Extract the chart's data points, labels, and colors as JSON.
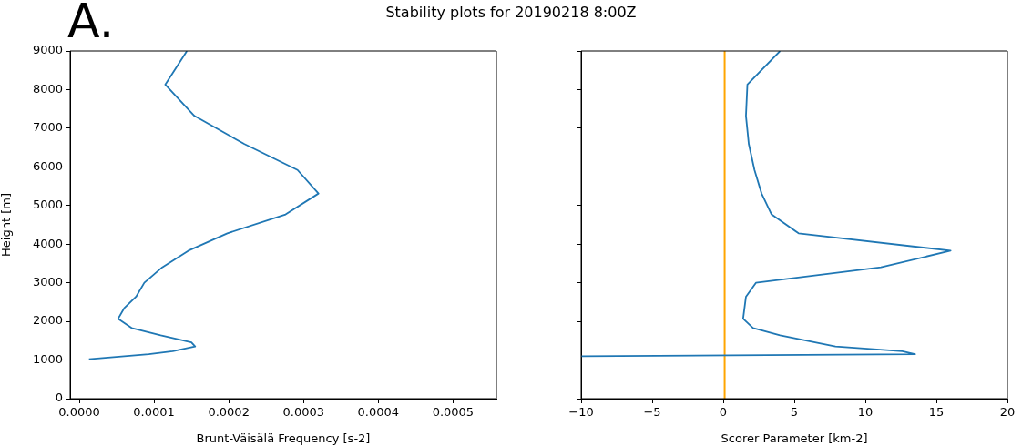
{
  "chart_data": [
    {
      "type": "line",
      "title": "Stability plots for 20190218 8:00Z",
      "annotations": [
        "A."
      ],
      "xlabel": "Brunt-Väisälä Frequency [s-2]",
      "ylabel": "Height [m]",
      "series": [
        {
          "color": "#1f77b4",
          "x": [
            0.000144,
            0.000115,
            0.000154,
            0.000221,
            0.000292,
            0.00032,
            0.000276,
            0.000198,
            0.000146,
            0.000111,
            8.7e-05,
            7.6e-05,
            6e-05,
            5.2e-05,
            7e-05,
            0.000109,
            0.00015,
            0.000155,
            0.000125,
            9.3e-05,
            1.3e-05
          ],
          "values": [
            9000,
            8130,
            7320,
            6590,
            5920,
            5310,
            4770,
            4280,
            3830,
            3400,
            3000,
            2640,
            2340,
            2070,
            1830,
            1640,
            1460,
            1350,
            1230,
            1150,
            1020
          ]
        }
      ],
      "xlim": [
        -1.22e-05,
        0.000558
      ],
      "xticks": [
        {
          "value": 0,
          "label": "0.0000"
        },
        {
          "value": 0.0001,
          "label": "0.0001"
        },
        {
          "value": 0.0002,
          "label": "0.0002"
        },
        {
          "value": 0.0003,
          "label": "0.0003"
        },
        {
          "value": 0.0004,
          "label": "0.0004"
        },
        {
          "value": 0.0005,
          "label": "0.0005"
        }
      ],
      "ylim": [
        0,
        9000
      ],
      "yticks": [
        0,
        1000,
        2000,
        3000,
        4000,
        5000,
        6000,
        7000,
        8000,
        9000
      ],
      "grid": false,
      "legend": false,
      "marker": "none",
      "line_style": "solid"
    },
    {
      "type": "line",
      "xlabel": "Scorer Parameter [km-2]",
      "series": [
        {
          "color": "#1f77b4",
          "x": [
            4.0,
            1.7,
            1.6,
            1.8,
            2.2,
            2.7,
            3.4,
            5.3,
            16.0,
            11.1,
            2.3,
            1.6,
            1.4,
            2.1,
            4.0,
            7.9,
            12.6,
            13.5,
            -10
          ],
          "values": [
            9000,
            8130,
            7320,
            6590,
            5920,
            5310,
            4770,
            4280,
            3830,
            3400,
            3000,
            2640,
            2070,
            1830,
            1640,
            1350,
            1230,
            1150,
            1100
          ]
        }
      ],
      "xlim": [
        -10,
        20
      ],
      "xticks": [
        {
          "value": -10,
          "label": "−10"
        },
        {
          "value": -5,
          "label": "−5"
        },
        0,
        5,
        10,
        15,
        20
      ],
      "ylim": [
        0,
        9000
      ],
      "yticks": [
        0,
        1000,
        2000,
        3000,
        4000,
        5000,
        6000,
        7000,
        8000,
        9000
      ],
      "tick_labels": "x",
      "ref_lines": [
        {
          "axis": "x",
          "value": 0.1,
          "color": "#ffa500"
        }
      ],
      "grid": false,
      "legend": false,
      "marker": "none",
      "line_style": "solid"
    }
  ]
}
